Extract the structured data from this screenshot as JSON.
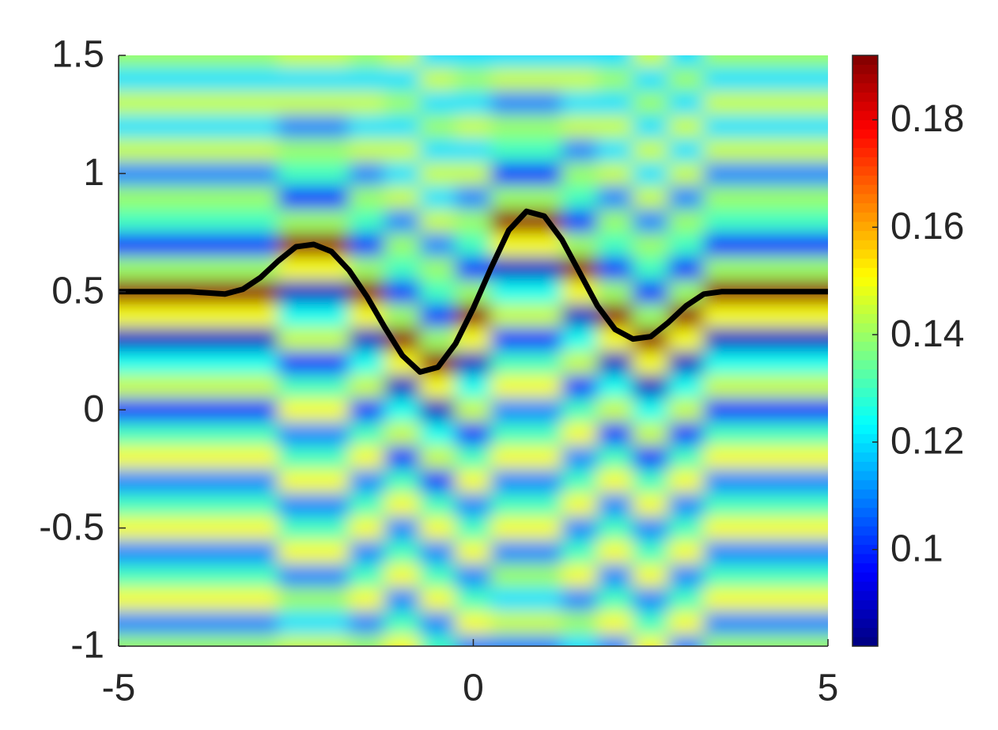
{
  "chart_data": {
    "type": "heatmap",
    "colorscale": "jet",
    "x": [
      -5,
      -4.5,
      -4,
      -3.5,
      -3,
      -2.5,
      -2,
      -1.5,
      -1,
      -0.5,
      0,
      0.5,
      1,
      1.5,
      2,
      2.5,
      3,
      3.5,
      4,
      4.5,
      5
    ],
    "y": [
      -1,
      -0.9,
      -0.8,
      -0.7,
      -0.6,
      -0.5,
      -0.4,
      -0.3,
      -0.2,
      -0.1,
      0,
      0.1,
      0.2,
      0.3,
      0.4,
      0.5,
      0.6,
      0.7,
      0.8,
      0.9,
      1,
      1.1,
      1.2,
      1.3,
      1.4,
      1.5
    ],
    "z": [
      [
        0.14,
        0.14,
        0.14,
        0.14,
        0.14,
        0.145,
        0.145,
        0.14,
        0.15,
        0.13,
        0.11,
        0.11,
        0.11,
        0.12,
        0.11,
        0.15,
        0.11,
        0.14,
        0.14,
        0.14,
        0.14
      ],
      [
        0.11,
        0.11,
        0.11,
        0.11,
        0.11,
        0.12,
        0.12,
        0.11,
        0.13,
        0.11,
        0.15,
        0.145,
        0.145,
        0.14,
        0.15,
        0.13,
        0.15,
        0.11,
        0.11,
        0.11,
        0.11
      ],
      [
        0.15,
        0.15,
        0.15,
        0.15,
        0.15,
        0.14,
        0.14,
        0.15,
        0.11,
        0.15,
        0.13,
        0.12,
        0.12,
        0.11,
        0.13,
        0.11,
        0.13,
        0.15,
        0.15,
        0.15,
        0.15
      ],
      [
        0.13,
        0.13,
        0.13,
        0.13,
        0.13,
        0.11,
        0.11,
        0.13,
        0.15,
        0.13,
        0.11,
        0.14,
        0.14,
        0.15,
        0.11,
        0.15,
        0.11,
        0.13,
        0.13,
        0.13,
        0.13
      ],
      [
        0.11,
        0.11,
        0.11,
        0.11,
        0.11,
        0.15,
        0.15,
        0.11,
        0.13,
        0.11,
        0.15,
        0.11,
        0.11,
        0.13,
        0.15,
        0.13,
        0.15,
        0.11,
        0.11,
        0.11,
        0.11
      ],
      [
        0.15,
        0.15,
        0.15,
        0.15,
        0.15,
        0.13,
        0.13,
        0.15,
        0.11,
        0.15,
        0.13,
        0.15,
        0.15,
        0.11,
        0.13,
        0.11,
        0.13,
        0.15,
        0.15,
        0.15,
        0.15
      ],
      [
        0.13,
        0.13,
        0.13,
        0.13,
        0.13,
        0.11,
        0.11,
        0.13,
        0.15,
        0.13,
        0.11,
        0.13,
        0.13,
        0.15,
        0.11,
        0.15,
        0.11,
        0.13,
        0.13,
        0.13,
        0.13
      ],
      [
        0.11,
        0.11,
        0.11,
        0.11,
        0.11,
        0.15,
        0.15,
        0.11,
        0.13,
        0.1,
        0.15,
        0.11,
        0.11,
        0.13,
        0.15,
        0.13,
        0.15,
        0.11,
        0.11,
        0.11,
        0.11
      ],
      [
        0.15,
        0.15,
        0.15,
        0.15,
        0.15,
        0.13,
        0.13,
        0.15,
        0.1,
        0.145,
        0.13,
        0.15,
        0.15,
        0.11,
        0.13,
        0.1,
        0.13,
        0.15,
        0.15,
        0.15,
        0.15
      ],
      [
        0.13,
        0.13,
        0.13,
        0.13,
        0.13,
        0.11,
        0.11,
        0.13,
        0.145,
        0.125,
        0.1,
        0.13,
        0.13,
        0.15,
        0.1,
        0.145,
        0.1,
        0.13,
        0.13,
        0.13,
        0.13
      ],
      [
        0.1,
        0.1,
        0.1,
        0.1,
        0.1,
        0.15,
        0.15,
        0.1,
        0.125,
        0.09,
        0.145,
        0.11,
        0.11,
        0.13,
        0.145,
        0.125,
        0.145,
        0.1,
        0.1,
        0.1,
        0.1
      ],
      [
        0.145,
        0.145,
        0.145,
        0.145,
        0.145,
        0.13,
        0.13,
        0.145,
        0.09,
        0.15,
        0.125,
        0.15,
        0.15,
        0.1,
        0.125,
        0.09,
        0.125,
        0.145,
        0.145,
        0.145,
        0.145
      ],
      [
        0.125,
        0.125,
        0.125,
        0.125,
        0.125,
        0.1,
        0.1,
        0.125,
        0.15,
        0.19,
        0.09,
        0.13,
        0.13,
        0.145,
        0.09,
        0.15,
        0.09,
        0.125,
        0.125,
        0.125,
        0.125
      ],
      [
        0.09,
        0.09,
        0.09,
        0.09,
        0.09,
        0.145,
        0.145,
        0.09,
        0.19,
        0.14,
        0.15,
        0.1,
        0.1,
        0.125,
        0.15,
        0.19,
        0.15,
        0.09,
        0.09,
        0.09,
        0.09
      ],
      [
        0.15,
        0.15,
        0.15,
        0.15,
        0.15,
        0.125,
        0.125,
        0.15,
        0.14,
        0.1,
        0.19,
        0.145,
        0.145,
        0.09,
        0.19,
        0.14,
        0.19,
        0.15,
        0.15,
        0.15,
        0.15
      ],
      [
        0.19,
        0.19,
        0.19,
        0.19,
        0.19,
        0.09,
        0.09,
        0.19,
        0.1,
        0.13,
        0.14,
        0.125,
        0.125,
        0.15,
        0.14,
        0.1,
        0.14,
        0.19,
        0.19,
        0.19,
        0.19
      ],
      [
        0.14,
        0.14,
        0.14,
        0.14,
        0.14,
        0.15,
        0.15,
        0.14,
        0.13,
        0.14,
        0.1,
        0.09,
        0.09,
        0.19,
        0.1,
        0.13,
        0.1,
        0.14,
        0.14,
        0.14,
        0.14
      ],
      [
        0.1,
        0.1,
        0.1,
        0.1,
        0.1,
        0.19,
        0.19,
        0.1,
        0.14,
        0.11,
        0.13,
        0.15,
        0.15,
        0.14,
        0.13,
        0.14,
        0.13,
        0.1,
        0.1,
        0.1,
        0.1
      ],
      [
        0.13,
        0.13,
        0.13,
        0.13,
        0.13,
        0.14,
        0.14,
        0.13,
        0.11,
        0.145,
        0.14,
        0.19,
        0.19,
        0.1,
        0.14,
        0.11,
        0.14,
        0.13,
        0.13,
        0.13,
        0.13
      ],
      [
        0.14,
        0.14,
        0.14,
        0.14,
        0.14,
        0.1,
        0.1,
        0.14,
        0.145,
        0.12,
        0.11,
        0.14,
        0.14,
        0.13,
        0.11,
        0.145,
        0.11,
        0.14,
        0.14,
        0.14,
        0.14
      ],
      [
        0.11,
        0.11,
        0.11,
        0.11,
        0.11,
        0.13,
        0.13,
        0.11,
        0.12,
        0.145,
        0.145,
        0.1,
        0.1,
        0.14,
        0.145,
        0.12,
        0.145,
        0.11,
        0.11,
        0.11,
        0.11
      ],
      [
        0.145,
        0.145,
        0.145,
        0.145,
        0.145,
        0.14,
        0.14,
        0.145,
        0.145,
        0.12,
        0.12,
        0.13,
        0.13,
        0.11,
        0.12,
        0.145,
        0.12,
        0.145,
        0.145,
        0.145,
        0.145
      ],
      [
        0.12,
        0.12,
        0.12,
        0.12,
        0.12,
        0.11,
        0.11,
        0.12,
        0.12,
        0.14,
        0.145,
        0.14,
        0.14,
        0.145,
        0.145,
        0.12,
        0.145,
        0.12,
        0.12,
        0.12,
        0.12
      ],
      [
        0.145,
        0.145,
        0.145,
        0.145,
        0.145,
        0.145,
        0.145,
        0.145,
        0.14,
        0.12,
        0.12,
        0.11,
        0.11,
        0.12,
        0.12,
        0.14,
        0.12,
        0.145,
        0.145,
        0.145,
        0.145
      ],
      [
        0.12,
        0.12,
        0.12,
        0.12,
        0.12,
        0.12,
        0.12,
        0.12,
        0.12,
        0.145,
        0.14,
        0.145,
        0.145,
        0.145,
        0.14,
        0.12,
        0.14,
        0.12,
        0.12,
        0.12,
        0.12
      ],
      [
        0.14,
        0.14,
        0.14,
        0.14,
        0.14,
        0.145,
        0.145,
        0.14,
        0.145,
        0.12,
        0.12,
        0.12,
        0.12,
        0.12,
        0.12,
        0.145,
        0.12,
        0.14,
        0.14,
        0.14,
        0.14
      ]
    ],
    "line": {
      "color": "#000000",
      "x": [
        -5,
        -4.75,
        -4.5,
        -4.25,
        -4,
        -3.75,
        -3.5,
        -3.25,
        -3,
        -2.75,
        -2.5,
        -2.25,
        -2,
        -1.75,
        -1.5,
        -1.25,
        -1,
        -0.75,
        -0.5,
        -0.25,
        0,
        0.25,
        0.5,
        0.75,
        1,
        1.25,
        1.5,
        1.75,
        2,
        2.25,
        2.5,
        2.75,
        3,
        3.25,
        3.5,
        3.75,
        4,
        4.25,
        4.5,
        4.75,
        5
      ],
      "y": [
        0.5,
        0.5,
        0.5,
        0.5,
        0.5,
        0.495,
        0.49,
        0.51,
        0.56,
        0.63,
        0.69,
        0.7,
        0.67,
        0.59,
        0.48,
        0.35,
        0.23,
        0.16,
        0.18,
        0.28,
        0.43,
        0.6,
        0.76,
        0.84,
        0.82,
        0.72,
        0.58,
        0.44,
        0.34,
        0.3,
        0.31,
        0.37,
        0.44,
        0.49,
        0.5,
        0.5,
        0.5,
        0.5,
        0.5,
        0.5,
        0.5
      ]
    },
    "xlim": [
      -5,
      5
    ],
    "ylim": [
      -1,
      1.5
    ],
    "xticks": [
      -5,
      0,
      5
    ],
    "yticks": [
      -1,
      -0.5,
      0,
      0.5,
      1,
      1.5
    ],
    "clim": [
      0.082,
      0.192
    ],
    "cticks": [
      0.1,
      0.12,
      0.14,
      0.16,
      0.18
    ]
  }
}
